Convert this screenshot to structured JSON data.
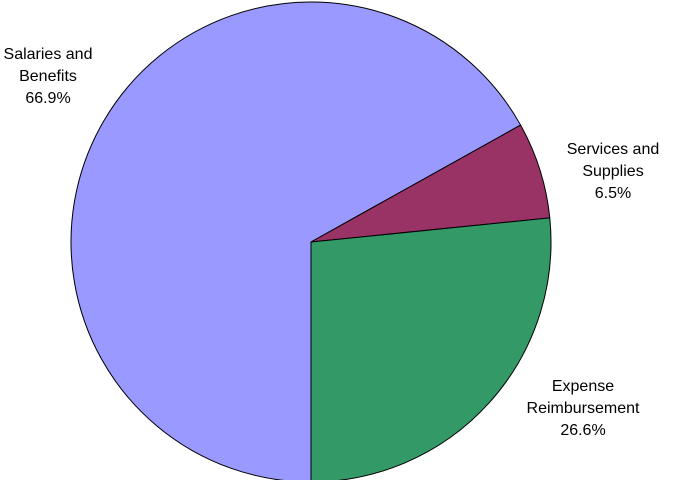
{
  "chart_data": {
    "type": "pie",
    "categories": [
      "Salaries and Benefits",
      "Services and Supplies",
      "Expense Reimbursement"
    ],
    "values": [
      66.9,
      6.5,
      26.6
    ],
    "value_labels": [
      "66.9%",
      "6.5%",
      "26.6%"
    ],
    "colors": [
      "#9999ff",
      "#993366",
      "#339966"
    ]
  }
}
